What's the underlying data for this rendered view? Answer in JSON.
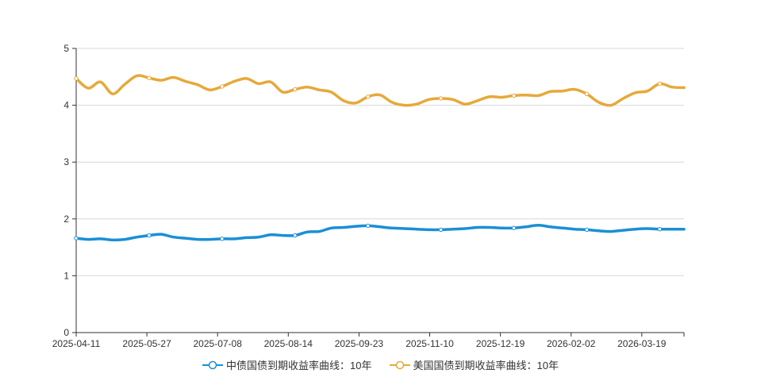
{
  "chart_data": {
    "type": "line",
    "x_axis_ticks": [
      "2025-04-11",
      "2025-05-27",
      "2025-07-08",
      "2025-08-14",
      "2025-09-23",
      "2025-11-10",
      "2025-12-19",
      "2026-02-02",
      "2026-03-19"
    ],
    "y_ticks": [
      "0",
      "1",
      "2",
      "3",
      "4",
      "5"
    ],
    "ylim": [
      0,
      5
    ],
    "grid": true,
    "legend_placement": "bottom",
    "x": [
      "2025-04-11",
      "2025-04-18",
      "2025-04-25",
      "2025-05-02",
      "2025-05-09",
      "2025-05-16",
      "2025-05-23",
      "2025-05-27",
      "2025-06-03",
      "2025-06-10",
      "2025-06-17",
      "2025-06-24",
      "2025-07-01",
      "2025-07-08",
      "2025-07-15",
      "2025-07-22",
      "2025-07-29",
      "2025-08-05",
      "2025-08-14",
      "2025-08-21",
      "2025-08-28",
      "2025-09-04",
      "2025-09-11",
      "2025-09-18",
      "2025-09-23",
      "2025-09-30",
      "2025-10-09",
      "2025-10-16",
      "2025-10-23",
      "2025-10-30",
      "2025-11-10",
      "2025-11-17",
      "2025-11-24",
      "2025-12-01",
      "2025-12-08",
      "2025-12-19",
      "2025-12-26",
      "2026-01-05",
      "2026-01-12",
      "2026-01-19",
      "2026-01-26",
      "2026-02-02",
      "2026-02-09",
      "2026-02-16",
      "2026-02-23",
      "2026-03-02",
      "2026-03-09",
      "2026-03-19",
      "2026-03-26",
      "2026-04-02",
      "2026-04-09"
    ],
    "series": [
      {
        "name": "中债国债到期收益率曲线：10年",
        "color": "#1a8fd6",
        "values": [
          1.66,
          1.64,
          1.65,
          1.63,
          1.64,
          1.68,
          1.71,
          1.73,
          1.68,
          1.66,
          1.64,
          1.64,
          1.65,
          1.65,
          1.67,
          1.68,
          1.72,
          1.71,
          1.71,
          1.77,
          1.78,
          1.84,
          1.85,
          1.87,
          1.88,
          1.86,
          1.84,
          1.83,
          1.82,
          1.81,
          1.81,
          1.82,
          1.83,
          1.85,
          1.85,
          1.84,
          1.84,
          1.86,
          1.89,
          1.86,
          1.84,
          1.82,
          1.81,
          1.79,
          1.78,
          1.8,
          1.82,
          1.83,
          1.82,
          1.82,
          1.82
        ]
      },
      {
        "name": "美国国债到期收益率曲线：10年",
        "color": "#e6a93a",
        "values": [
          4.47,
          4.3,
          4.41,
          4.2,
          4.37,
          4.52,
          4.48,
          4.44,
          4.49,
          4.42,
          4.36,
          4.27,
          4.33,
          4.42,
          4.47,
          4.38,
          4.41,
          4.23,
          4.28,
          4.32,
          4.27,
          4.23,
          4.08,
          4.04,
          4.15,
          4.18,
          4.05,
          4.0,
          4.02,
          4.1,
          4.12,
          4.1,
          4.02,
          4.08,
          4.15,
          4.14,
          4.17,
          4.18,
          4.17,
          4.24,
          4.25,
          4.28,
          4.2,
          4.05,
          4.0,
          4.12,
          4.22,
          4.25,
          4.38,
          4.32,
          4.31
        ]
      }
    ]
  }
}
